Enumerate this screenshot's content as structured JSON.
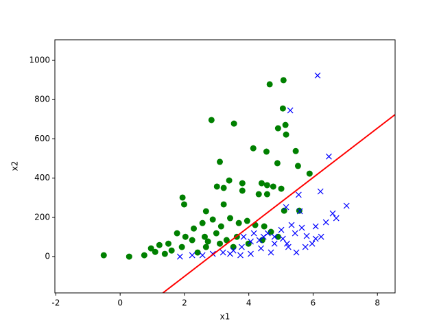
{
  "chart_data": {
    "type": "scatter",
    "xlabel": "x1",
    "ylabel": "x2",
    "xlim": [
      -2.03,
      8.55
    ],
    "ylim": [
      -185,
      1105
    ],
    "xticks": [
      -2,
      0,
      2,
      4,
      6,
      8
    ],
    "yticks": [
      0,
      200,
      400,
      600,
      800,
      1000
    ],
    "series": [
      {
        "marker": "o",
        "color": "green",
        "x": [
          -0.51,
          0.28,
          1.94,
          1.99,
          2.84,
          3.54,
          3.1,
          4.65,
          5.08,
          5.06,
          5.14,
          5.16,
          4.91,
          4.14,
          4.55,
          4.89,
          5.46,
          5.53,
          5.89,
          5.01,
          3.39,
          3.01,
          3.22,
          3.8,
          3.8,
          4.4,
          4.57,
          4.31,
          4.57,
          4.76,
          5.57,
          5.1,
          2.67,
          3.22,
          0.75,
          0.96,
          1.22,
          1.5,
          1.77,
          2.03,
          2.29,
          2.56,
          2.88,
          3.14,
          3.42,
          3.69,
          3.95,
          4.2,
          4.48,
          4.69,
          4.91,
          1.6,
          1.92,
          2.24,
          2.63,
          2.99,
          3.31,
          3.63,
          2.67,
          3.1,
          2.41,
          1.39,
          1.09,
          3.52,
          3.99,
          4.42,
          2.73
        ],
        "y": [
          7,
          0,
          301,
          266,
          696,
          678,
          483,
          878,
          899,
          755,
          671,
          622,
          654,
          552,
          535,
          476,
          538,
          462,
          423,
          346,
          388,
          357,
          350,
          374,
          336,
          374,
          364,
          318,
          318,
          357,
          234,
          234,
          231,
          266,
          7,
          42,
          59,
          66,
          119,
          101,
          143,
          171,
          189,
          154,
          196,
          171,
          182,
          161,
          154,
          126,
          101,
          31,
          49,
          84,
          101,
          119,
          84,
          101,
          49,
          66,
          21,
          14,
          24,
          49,
          66,
          84,
          77
        ]
      },
      {
        "marker": "x",
        "color": "blue",
        "x": [
          6.14,
          5.29,
          6.49,
          6.23,
          5.55,
          5.16,
          5.59,
          6.61,
          7.04,
          6.72,
          6.4,
          6.08,
          6.25,
          5.8,
          5.65,
          5.33,
          5.01,
          4.8,
          4.59,
          4.33,
          4.06,
          3.78,
          3.52,
          3.2,
          2.88,
          2.56,
          2.24,
          1.86,
          5.23,
          5.76,
          5.48,
          5.97,
          4.69,
          4.38,
          4.06,
          3.74,
          3.42,
          4.8,
          5.06,
          4.46,
          4.16,
          3.84,
          5.44,
          5.19,
          6.08
        ],
        "y": [
          923,
          745,
          510,
          332,
          315,
          252,
          231,
          220,
          259,
          196,
          175,
          154,
          101,
          105,
          147,
          161,
          136,
          101,
          119,
          84,
          77,
          49,
          31,
          21,
          14,
          7,
          7,
          0,
          49,
          49,
          21,
          66,
          21,
          42,
          14,
          7,
          14,
          66,
          91,
          101,
          119,
          101,
          119,
          66,
          91
        ]
      },
      {
        "marker": "line",
        "color": "red",
        "x": [
          1.33,
          8.55
        ],
        "y": [
          -185,
          724
        ]
      }
    ]
  }
}
